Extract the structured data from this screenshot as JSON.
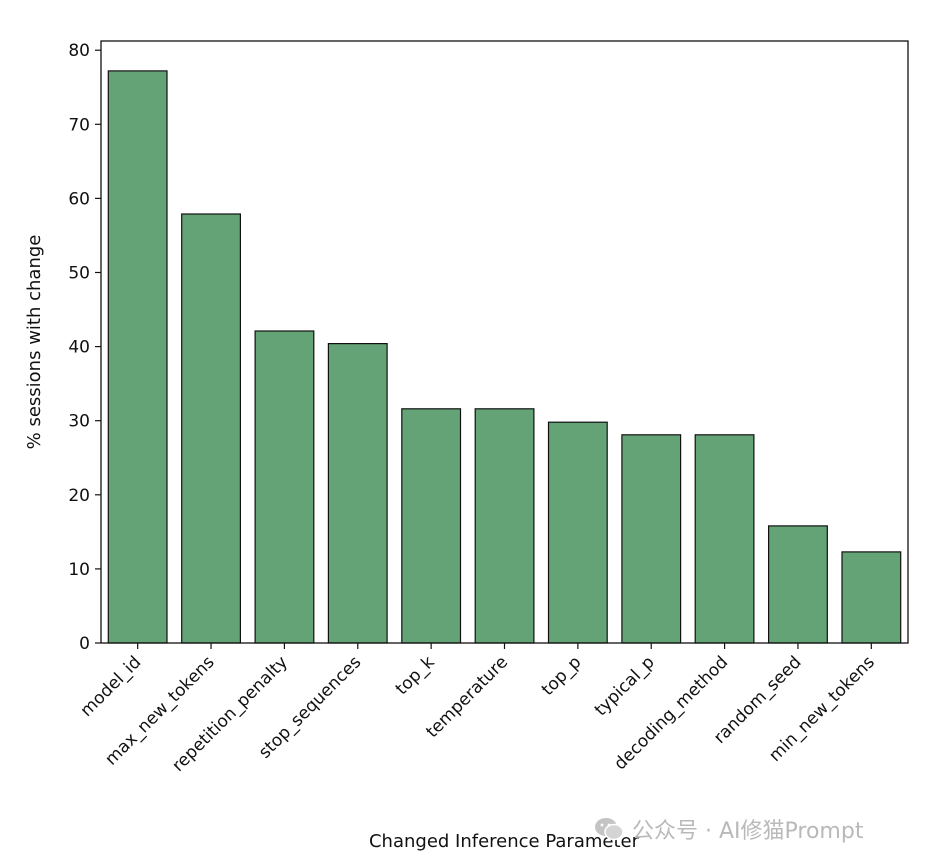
{
  "chart_data": {
    "type": "bar",
    "xlabel": "Changed Inference Parameter",
    "ylabel": "% sessions with change",
    "categories": [
      "model_id",
      "max_new_tokens",
      "repetition_penalty",
      "stop_sequences",
      "top_k",
      "temperature",
      "top_p",
      "typical_p",
      "decoding_method",
      "random_seed",
      "min_new_tokens"
    ],
    "values": [
      77.2,
      57.9,
      42.1,
      40.4,
      31.6,
      31.6,
      29.8,
      28.1,
      28.1,
      15.8,
      12.3
    ],
    "ylim": [
      0,
      81
    ],
    "yticks": [
      "0",
      "10",
      "20",
      "30",
      "40",
      "50",
      "60",
      "70",
      "80"
    ],
    "bar_color": "#63a376",
    "edge_color": "#111111",
    "grid": false
  },
  "watermark": {
    "text": "公众号 · AI修猫Prompt",
    "icon": "wechat-icon"
  }
}
